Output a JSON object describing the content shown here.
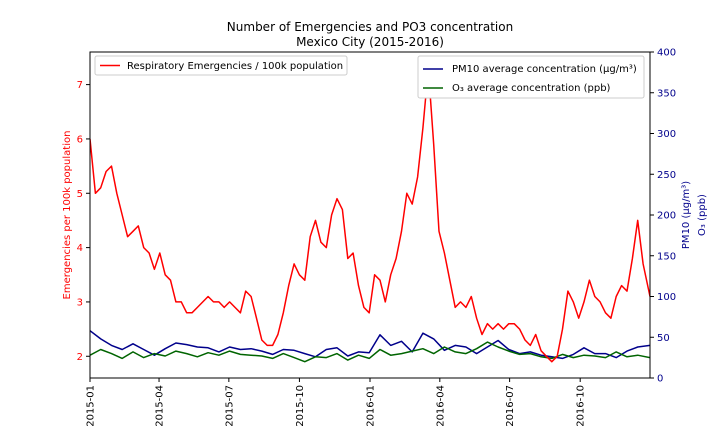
{
  "chart_data": {
    "type": "line",
    "title": "Number of Emergencies and PO3 concentration",
    "subtitle": "Mexico City (2015-2016)",
    "x_ticks": [
      "2015-01",
      "2015-04",
      "2015-07",
      "2015-10",
      "2016-01",
      "2016-04",
      "2016-07",
      "2016-10"
    ],
    "x_range": [
      "2015-01-01",
      "2016-12-31"
    ],
    "y_left": {
      "label": "Emergencies per 100k population",
      "range": [
        1.6,
        7.6
      ],
      "ticks": [
        "2",
        "3",
        "4",
        "5",
        "6",
        "7"
      ],
      "color": "#ff0000"
    },
    "y_right": {
      "label_line1": "PM10 (µg/m³)",
      "label_line2": "O₃ (ppb)",
      "range": [
        0,
        400
      ],
      "ticks": [
        "0",
        "50",
        "100",
        "150",
        "200",
        "250",
        "300",
        "350",
        "400"
      ],
      "color": "#00008b"
    },
    "legend_left": {
      "placement": "top-left",
      "entries": [
        {
          "label": "Respiratory Emergencies / 100k population",
          "color": "#ff0000"
        }
      ]
    },
    "legend_right": {
      "placement": "top-right",
      "entries": [
        {
          "label": "PM10 average concentration (µg/m³)",
          "color": "#00008b"
        },
        {
          "label": "O₃ average concentration (ppb)",
          "color": "#006400"
        }
      ]
    },
    "series": [
      {
        "name": "Respiratory Emergencies / 100k population",
        "axis": "left",
        "color": "#ff0000",
        "x": [
          "2015-01-01",
          "2015-01-08",
          "2015-01-15",
          "2015-01-22",
          "2015-01-29",
          "2015-02-05",
          "2015-02-12",
          "2015-02-19",
          "2015-02-26",
          "2015-03-05",
          "2015-03-12",
          "2015-03-19",
          "2015-03-26",
          "2015-04-02",
          "2015-04-09",
          "2015-04-16",
          "2015-04-23",
          "2015-04-30",
          "2015-05-07",
          "2015-05-14",
          "2015-05-21",
          "2015-05-28",
          "2015-06-04",
          "2015-06-11",
          "2015-06-18",
          "2015-06-25",
          "2015-07-02",
          "2015-07-09",
          "2015-07-16",
          "2015-07-23",
          "2015-07-30",
          "2015-08-06",
          "2015-08-13",
          "2015-08-20",
          "2015-08-27",
          "2015-09-03",
          "2015-09-10",
          "2015-09-17",
          "2015-09-24",
          "2015-10-01",
          "2015-10-08",
          "2015-10-15",
          "2015-10-22",
          "2015-10-29",
          "2015-11-05",
          "2015-11-12",
          "2015-11-19",
          "2015-11-26",
          "2015-12-03",
          "2015-12-10",
          "2015-12-17",
          "2015-12-24",
          "2015-12-31",
          "2016-01-07",
          "2016-01-14",
          "2016-01-21",
          "2016-01-28",
          "2016-02-04",
          "2016-02-11",
          "2016-02-18",
          "2016-02-25",
          "2016-03-03",
          "2016-03-10",
          "2016-03-17",
          "2016-03-24",
          "2016-03-31",
          "2016-04-07",
          "2016-04-14",
          "2016-04-21",
          "2016-04-28",
          "2016-05-05",
          "2016-05-12",
          "2016-05-19",
          "2016-05-26",
          "2016-06-02",
          "2016-06-09",
          "2016-06-16",
          "2016-06-23",
          "2016-06-30",
          "2016-07-07",
          "2016-07-14",
          "2016-07-21",
          "2016-07-28",
          "2016-08-04",
          "2016-08-11",
          "2016-08-18",
          "2016-08-25",
          "2016-09-01",
          "2016-09-08",
          "2016-09-15",
          "2016-09-22",
          "2016-09-29",
          "2016-10-06",
          "2016-10-13",
          "2016-10-20",
          "2016-10-27",
          "2016-11-03",
          "2016-11-10",
          "2016-11-17",
          "2016-11-24",
          "2016-12-01",
          "2016-12-08",
          "2016-12-15",
          "2016-12-22",
          "2016-12-31"
        ],
        "values": [
          6.0,
          5.0,
          5.1,
          5.4,
          5.5,
          5.0,
          4.6,
          4.2,
          4.3,
          4.4,
          4.0,
          3.9,
          3.6,
          3.9,
          3.5,
          3.4,
          3.0,
          3.0,
          2.8,
          2.8,
          2.9,
          3.0,
          3.1,
          3.0,
          3.0,
          2.9,
          3.0,
          2.9,
          2.8,
          3.2,
          3.1,
          2.7,
          2.3,
          2.2,
          2.2,
          2.4,
          2.8,
          3.3,
          3.7,
          3.5,
          3.4,
          4.2,
          4.5,
          4.1,
          4.0,
          4.6,
          4.9,
          4.7,
          3.8,
          3.9,
          3.3,
          2.9,
          2.8,
          3.5,
          3.4,
          3.0,
          3.5,
          3.8,
          4.3,
          5.0,
          4.8,
          5.3,
          6.2,
          7.3,
          5.9,
          4.3,
          3.9,
          3.4,
          2.9,
          3.0,
          2.9,
          3.1,
          2.7,
          2.4,
          2.6,
          2.5,
          2.6,
          2.5,
          2.6,
          2.6,
          2.5,
          2.3,
          2.2,
          2.4,
          2.1,
          2.0,
          1.9,
          2.0,
          2.5,
          3.2,
          3.0,
          2.7,
          3.0,
          3.4,
          3.1,
          3.0,
          2.8,
          2.7,
          3.1,
          3.3,
          3.2,
          3.8,
          4.5,
          3.7,
          3.1
        ]
      },
      {
        "name": "PM10 average concentration (µg/m³)",
        "axis": "right",
        "color": "#00008b",
        "x": [
          "2015-01-01",
          "2015-01-15",
          "2015-01-29",
          "2015-02-12",
          "2015-02-26",
          "2015-03-12",
          "2015-03-26",
          "2015-04-09",
          "2015-04-23",
          "2015-05-07",
          "2015-05-21",
          "2015-06-04",
          "2015-06-18",
          "2015-07-02",
          "2015-07-16",
          "2015-07-30",
          "2015-08-13",
          "2015-08-27",
          "2015-09-10",
          "2015-09-24",
          "2015-10-08",
          "2015-10-22",
          "2015-11-05",
          "2015-11-19",
          "2015-12-03",
          "2015-12-17",
          "2015-12-31",
          "2016-01-14",
          "2016-01-28",
          "2016-02-11",
          "2016-02-25",
          "2016-03-10",
          "2016-03-24",
          "2016-04-07",
          "2016-04-21",
          "2016-05-05",
          "2016-05-19",
          "2016-06-02",
          "2016-06-16",
          "2016-06-30",
          "2016-07-14",
          "2016-07-28",
          "2016-08-11",
          "2016-08-25",
          "2016-09-08",
          "2016-09-22",
          "2016-10-06",
          "2016-10-20",
          "2016-11-03",
          "2016-11-17",
          "2016-12-01",
          "2016-12-15",
          "2016-12-31"
        ],
        "values": [
          58,
          48,
          40,
          35,
          42,
          35,
          28,
          36,
          43,
          41,
          38,
          37,
          32,
          38,
          35,
          36,
          33,
          29,
          35,
          34,
          30,
          26,
          35,
          37,
          27,
          32,
          31,
          53,
          40,
          45,
          32,
          55,
          48,
          34,
          40,
          38,
          30,
          38,
          46,
          35,
          30,
          32,
          28,
          26,
          24,
          29,
          37,
          30,
          30,
          25,
          33,
          38,
          40
        ]
      },
      {
        "name": "O₃ average concentration (ppb)",
        "axis": "right",
        "color": "#006400",
        "x": [
          "2015-01-01",
          "2015-01-15",
          "2015-01-29",
          "2015-02-12",
          "2015-02-26",
          "2015-03-12",
          "2015-03-26",
          "2015-04-09",
          "2015-04-23",
          "2015-05-07",
          "2015-05-21",
          "2015-06-04",
          "2015-06-18",
          "2015-07-02",
          "2015-07-16",
          "2015-07-30",
          "2015-08-13",
          "2015-08-27",
          "2015-09-10",
          "2015-09-24",
          "2015-10-08",
          "2015-10-22",
          "2015-11-05",
          "2015-11-19",
          "2015-12-03",
          "2015-12-17",
          "2015-12-31",
          "2016-01-14",
          "2016-01-28",
          "2016-02-11",
          "2016-02-25",
          "2016-03-10",
          "2016-03-24",
          "2016-04-07",
          "2016-04-21",
          "2016-05-05",
          "2016-05-19",
          "2016-06-02",
          "2016-06-16",
          "2016-06-30",
          "2016-07-14",
          "2016-07-28",
          "2016-08-11",
          "2016-08-25",
          "2016-09-08",
          "2016-09-22",
          "2016-10-06",
          "2016-10-20",
          "2016-11-03",
          "2016-11-17",
          "2016-12-01",
          "2016-12-15",
          "2016-12-31"
        ],
        "values": [
          28,
          35,
          30,
          24,
          32,
          25,
          30,
          27,
          33,
          30,
          26,
          31,
          28,
          33,
          29,
          28,
          27,
          24,
          30,
          25,
          20,
          26,
          25,
          30,
          22,
          28,
          24,
          35,
          28,
          30,
          33,
          36,
          30,
          38,
          32,
          30,
          36,
          44,
          38,
          33,
          29,
          30,
          26,
          24,
          29,
          25,
          28,
          27,
          25,
          32,
          26,
          28,
          25
        ]
      }
    ]
  }
}
